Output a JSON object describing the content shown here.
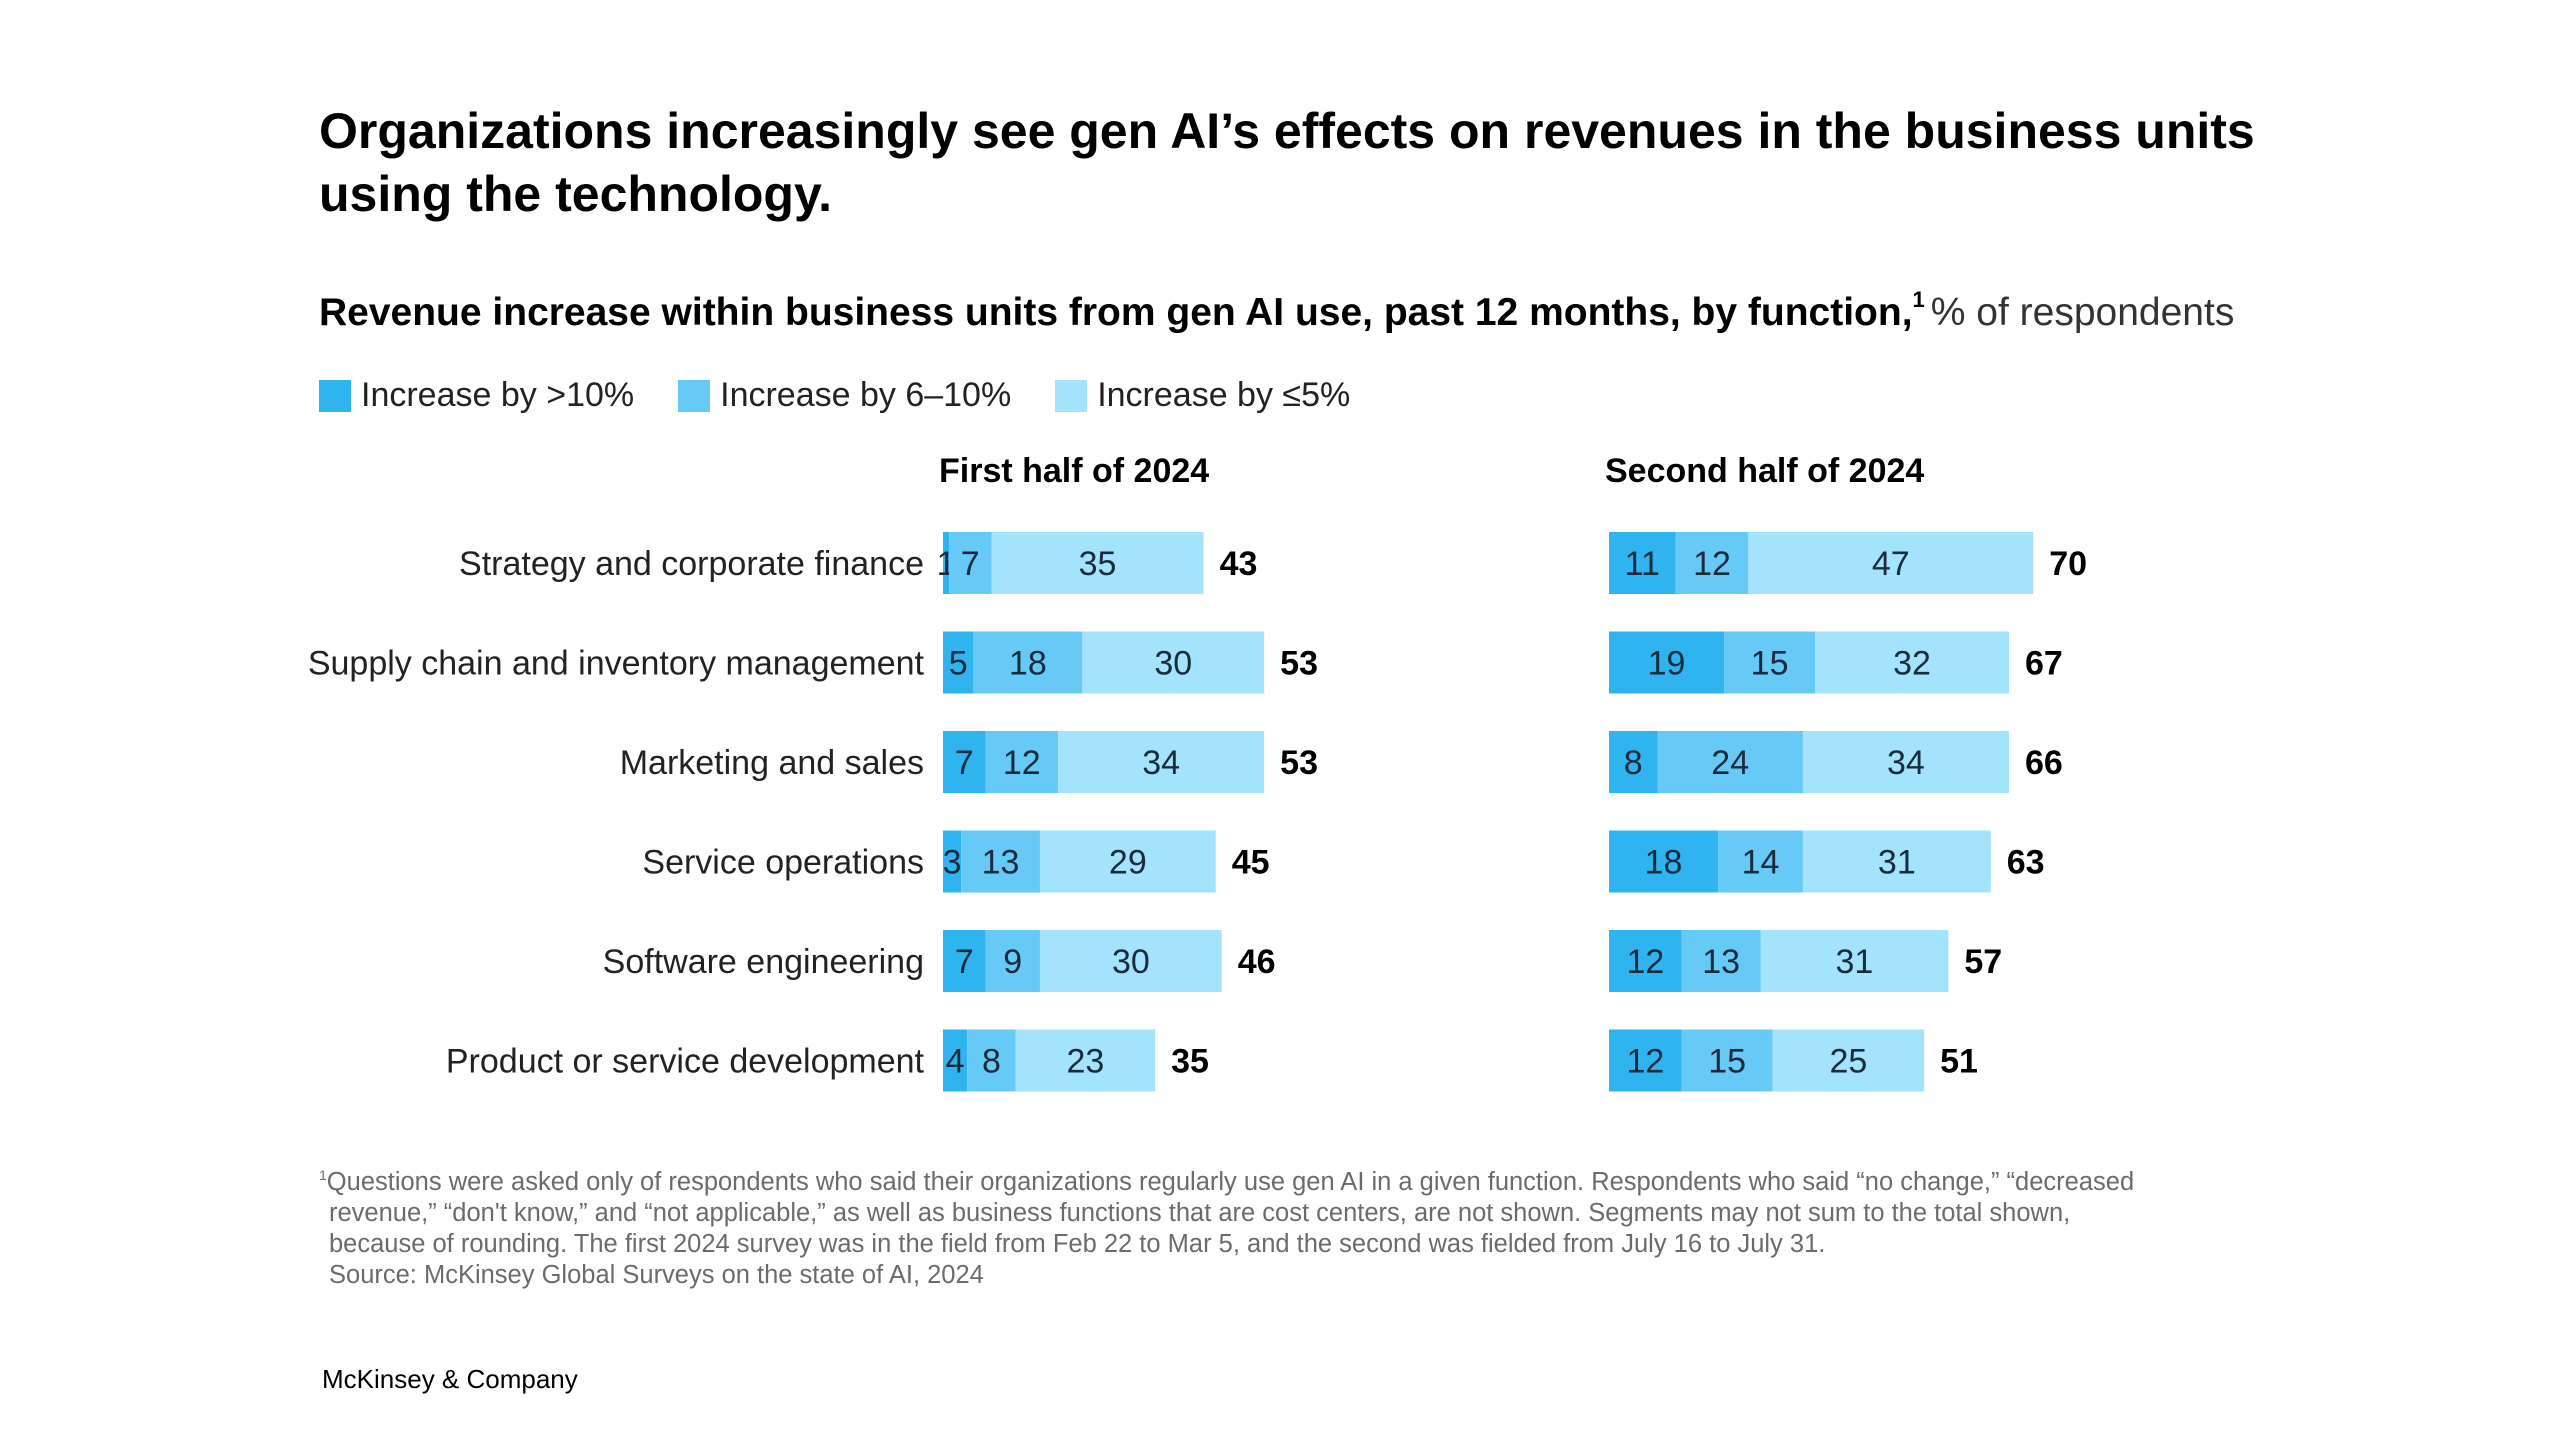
{
  "title": "Organizations increasingly see gen AI’s effects on revenues in the business units using the technology.",
  "subtitle": {
    "main": "Revenue increase within business units from gen AI use, past 12 months, by function,",
    "sup": "1",
    "unit": "% of respondents"
  },
  "legend": [
    {
      "label": "Increase by >10%",
      "color": "#2fb4f0"
    },
    {
      "label": "Increase by 6–10%",
      "color": "#66c9f6"
    },
    {
      "label": "Increase by ≤5%",
      "color": "#a4e3fc"
    }
  ],
  "chart_data": {
    "type": "bar",
    "orientation": "horizontal",
    "stacked": true,
    "categories": [
      "Strategy and corporate finance",
      "Supply chain and inventory management",
      "Marketing and sales",
      "Service operations",
      "Software engineering",
      "Product or service development"
    ],
    "panels": [
      {
        "title": "First half of 2024",
        "series": [
          {
            "name": "Increase by >10%",
            "values": [
              1,
              5,
              7,
              3,
              7,
              4
            ]
          },
          {
            "name": "Increase by 6–10%",
            "values": [
              7,
              18,
              12,
              13,
              9,
              8
            ]
          },
          {
            "name": "Increase by ≤5%",
            "values": [
              35,
              30,
              34,
              29,
              30,
              23
            ]
          }
        ],
        "totals": [
          43,
          53,
          53,
          45,
          46,
          35
        ]
      },
      {
        "title": "Second half of 2024",
        "series": [
          {
            "name": "Increase by >10%",
            "values": [
              11,
              19,
              8,
              18,
              12,
              12
            ]
          },
          {
            "name": "Increase by 6–10%",
            "values": [
              12,
              15,
              24,
              14,
              13,
              15
            ]
          },
          {
            "name": "Increase by ≤5%",
            "values": [
              47,
              32,
              34,
              31,
              31,
              25
            ]
          }
        ],
        "totals": [
          70,
          67,
          66,
          63,
          57,
          51
        ]
      }
    ],
    "colors": [
      "#2fb4f0",
      "#66c9f6",
      "#a4e3fc"
    ]
  },
  "footnote": {
    "marker": "1",
    "lines": [
      "Questions were asked only of respondents who said their organizations regularly use gen AI in a given function. Respondents who said “no change,” “decreased",
      "revenue,” “don't know,” and “not applicable,” as well as business functions that are cost centers, are not shown. Segments may not sum to the total shown,",
      "because of rounding. The first 2024 survey was in the field from Feb 22 to Mar 5, and the second was fielded from July 16 to July 31.",
      "Source: McKinsey Global Surveys on the state of AI, 2024"
    ]
  },
  "brand": "McKinsey & Company"
}
